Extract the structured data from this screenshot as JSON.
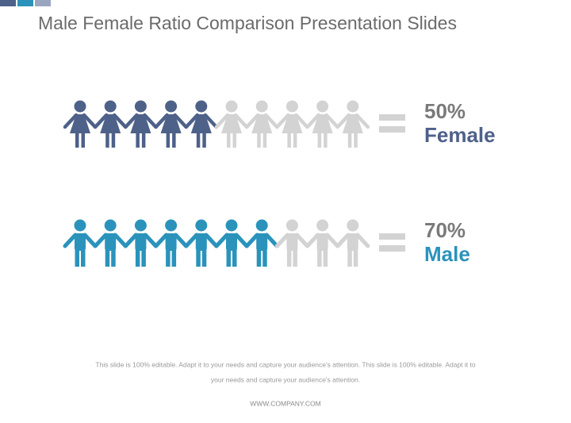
{
  "chart_data": {
    "type": "pictogram",
    "title": "Male Female Ratio Comparison Presentation Slides",
    "series": [
      {
        "name": "Female",
        "values": [
          50
        ],
        "value_labels": [
          "50%"
        ],
        "color": "#4e6189",
        "icon": "female"
      },
      {
        "name": "Male",
        "values": [
          70
        ],
        "value_labels": [
          "70%"
        ],
        "color": "#2b93bb",
        "icon": "male"
      }
    ],
    "empty_color": "#d3d3d3"
  },
  "footer": {
    "note_lines": [
      "This slide is 100% editable. Adapt it to your needs and capture your audience's attention. This slide is 100% editable. Adapt it to",
      "your needs and capture your audience's attention."
    ],
    "url": "WWW.COMPANY.COM"
  }
}
